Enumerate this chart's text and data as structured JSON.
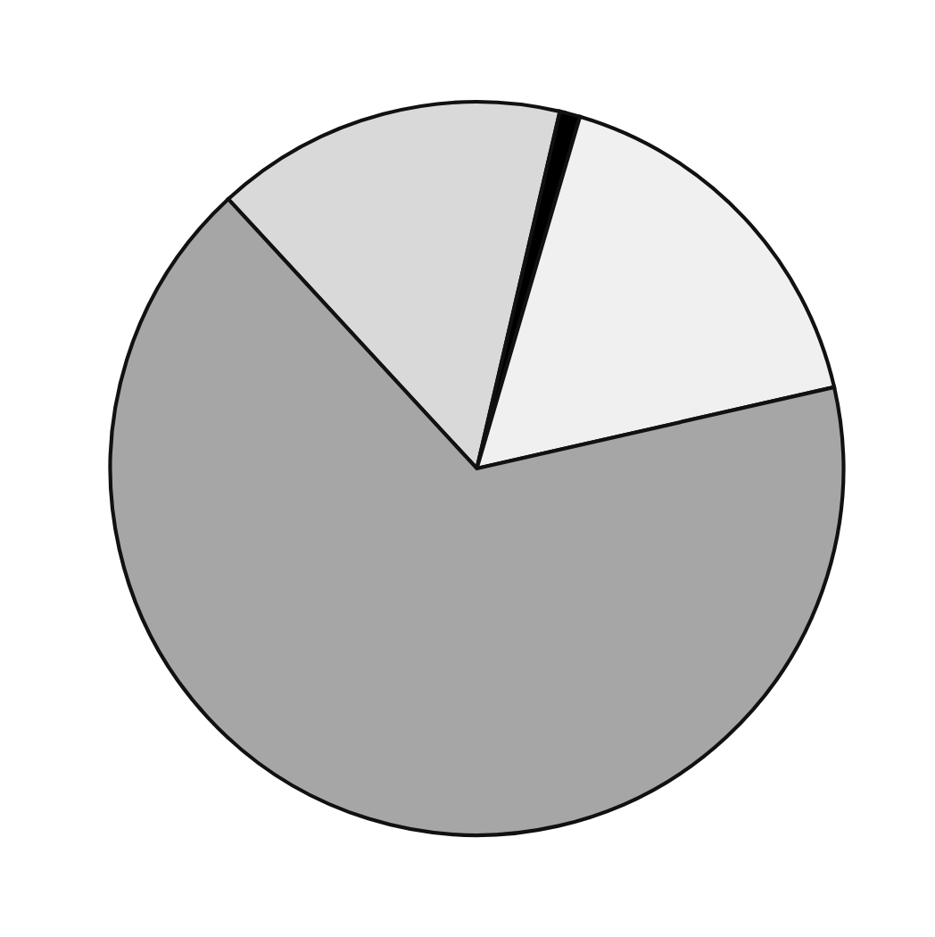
{
  "chart_data": {
    "type": "pie",
    "categories": [
      null,
      null,
      null,
      null
    ],
    "values": [
      15.5,
      0.9,
      16.9,
      66.7
    ],
    "colors": [
      "#d9d9d9",
      "#000000",
      "#f0f0f0",
      "#a6a6a6"
    ]
  }
}
